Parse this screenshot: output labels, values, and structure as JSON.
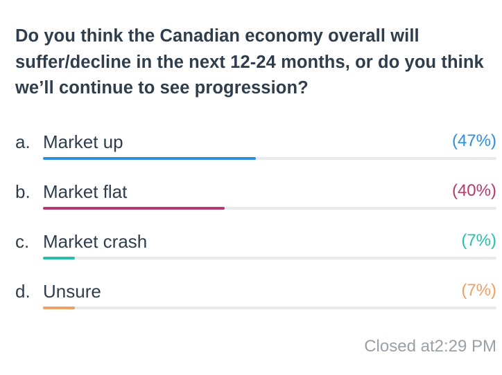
{
  "poll": {
    "question": "Do you think the Canadian economy overall will suffer/decline in the next 12-24 months, or do you think we’ll continue to see progression?",
    "options": [
      {
        "letter": "a.",
        "label": "Market up",
        "percent_text": "(47%)",
        "percent": 47,
        "color": "#2b8fe0"
      },
      {
        "letter": "b.",
        "label": "Market flat",
        "percent_text": "(40%)",
        "percent": 40,
        "color": "#b5386f"
      },
      {
        "letter": "c.",
        "label": "Market crash",
        "percent_text": "(7%)",
        "percent": 7,
        "color": "#27bfae"
      },
      {
        "letter": "d.",
        "label": "Unsure",
        "percent_text": "(7%)",
        "percent": 7,
        "color": "#f0a064"
      }
    ],
    "status": "Closed at2:29 PM"
  }
}
